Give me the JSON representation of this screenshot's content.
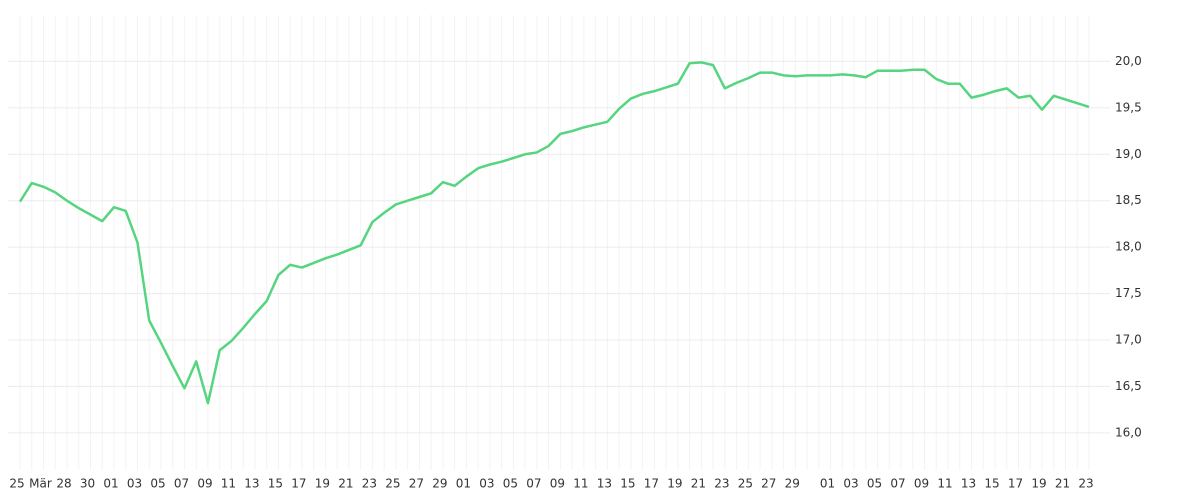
{
  "chart_data": {
    "type": "line",
    "categories": [
      "25",
      null,
      "Mär",
      null,
      "28",
      null,
      "30",
      null,
      "01",
      null,
      "03",
      null,
      "05",
      null,
      "07",
      null,
      "09",
      null,
      "11",
      null,
      "13",
      null,
      "15",
      null,
      "17",
      null,
      "19",
      null,
      "21",
      null,
      "23",
      null,
      "25",
      null,
      "27",
      null,
      "29",
      null,
      "01",
      null,
      "03",
      null,
      "05",
      null,
      "07",
      null,
      "09",
      null,
      "11",
      null,
      "13",
      null,
      "15",
      null,
      "17",
      null,
      "19",
      null,
      "21",
      null,
      "23",
      null,
      "25",
      null,
      "27",
      null,
      "29",
      null,
      null,
      "01",
      null,
      "03",
      null,
      "05",
      null,
      "07",
      null,
      "09",
      null,
      "11",
      null,
      "13",
      null,
      "15",
      null,
      "17",
      null,
      "19",
      null,
      "21",
      null,
      "23"
    ],
    "series": [
      {
        "color": "#55d57f",
        "values": [
          18.49,
          18.69,
          18.65,
          18.59,
          18.5,
          18.42,
          18.35,
          18.28,
          18.43,
          18.39,
          18.05,
          17.21,
          16.97,
          16.72,
          16.48,
          16.77,
          16.32,
          16.89,
          16.99,
          17.13,
          17.28,
          17.42,
          17.7,
          17.81,
          17.78,
          17.83,
          17.88,
          17.92,
          17.97,
          18.02,
          18.27,
          18.37,
          18.46,
          18.5,
          18.54,
          18.58,
          18.7,
          18.66,
          18.76,
          18.85,
          18.89,
          18.92,
          18.96,
          19.0,
          19.02,
          19.09,
          19.22,
          19.25,
          19.29,
          19.32,
          19.35,
          19.49,
          19.6,
          19.65,
          19.68,
          19.72,
          19.76,
          19.98,
          19.99,
          19.96,
          19.71,
          19.77,
          19.82,
          19.88,
          19.88,
          19.85,
          19.84,
          19.85,
          19.85,
          19.85,
          19.86,
          19.85,
          19.83,
          19.9,
          19.9,
          19.9,
          19.91,
          19.91,
          19.81,
          19.76,
          19.76,
          19.61,
          19.64,
          19.68,
          19.71,
          19.61,
          19.63,
          19.48,
          19.63,
          19.59,
          19.55,
          19.51
        ]
      }
    ],
    "ylim": [
      15.6,
      20.5
    ],
    "yticks": [
      {
        "value": 16,
        "label": "16,0"
      },
      {
        "value": 16.5,
        "label": "16,5"
      },
      {
        "value": 17,
        "label": "17,0"
      },
      {
        "value": 17.5,
        "label": "17,5"
      },
      {
        "value": 18,
        "label": "18,0"
      },
      {
        "value": 18.5,
        "label": "18,5"
      },
      {
        "value": 19,
        "label": "19,0"
      },
      {
        "value": 19.5,
        "label": "19,5"
      },
      {
        "value": 20,
        "label": "20,0"
      }
    ],
    "grid": true
  }
}
